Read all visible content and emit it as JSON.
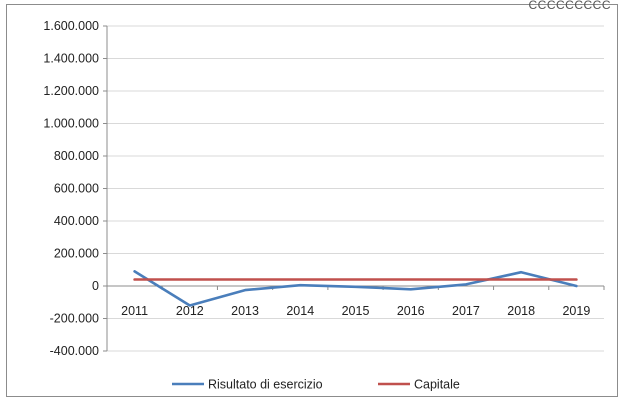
{
  "header": {
    "corner_text": "CCCCCCCCC"
  },
  "chart_data": {
    "type": "line",
    "x": [
      "2011",
      "2012",
      "2013",
      "2014",
      "2015",
      "2016",
      "2017",
      "2018",
      "2019"
    ],
    "series": [
      {
        "name": "Risultato di esercizio",
        "color": "#4a7ebb",
        "values": [
          90000,
          -120000,
          -25000,
          5000,
          -5000,
          -20000,
          10000,
          85000,
          0
        ]
      },
      {
        "name": "Capitale",
        "color": "#c0504d",
        "values": [
          40000,
          40000,
          40000,
          40000,
          40000,
          40000,
          40000,
          40000,
          40000
        ]
      }
    ],
    "y_ticks": [
      "1.600.000",
      "1.400.000",
      "1.200.000",
      "1.000.000",
      "800.000",
      "600.000",
      "400.000",
      "200.000",
      "0",
      "-200.000",
      "-400.000"
    ],
    "ylim": [
      -400000,
      1600000
    ],
    "grid": true,
    "legend_position": "bottom",
    "title": "",
    "xlabel": "",
    "ylabel": ""
  }
}
